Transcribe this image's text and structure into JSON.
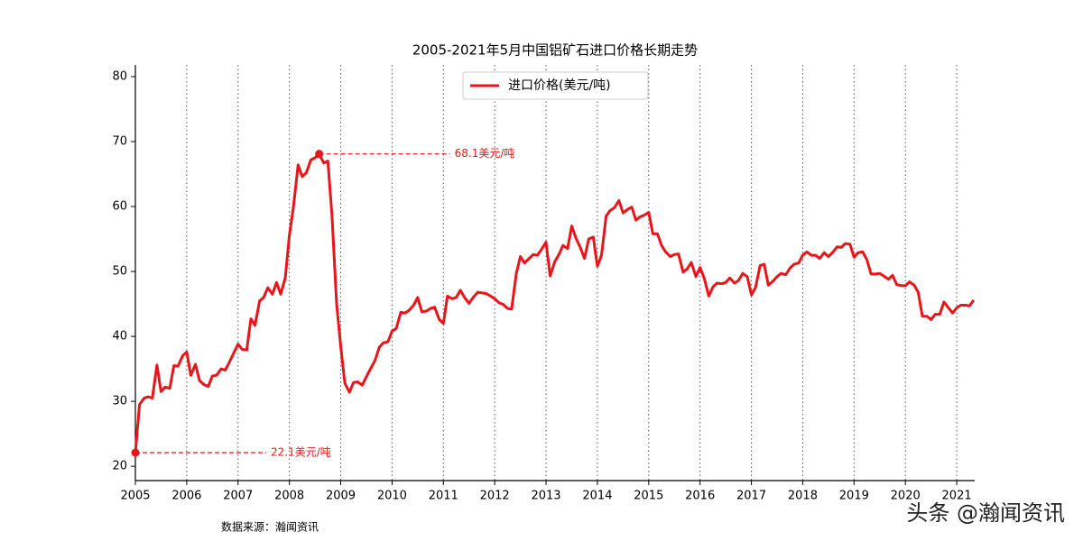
{
  "chart_data": {
    "type": "line",
    "title": "2005-2021年5月中国铝矿石进口价格长期走势",
    "source": "数据来源：瀚闻资讯",
    "watermark": "头条 @瀚闻资讯",
    "legend": "upper center",
    "grid": "x",
    "x": [
      2005.0,
      2005.08,
      2005.17,
      2005.25,
      2005.33,
      2005.42,
      2005.5,
      2005.58,
      2005.67,
      2005.75,
      2005.83,
      2005.92,
      2006.0,
      2006.08,
      2006.17,
      2006.25,
      2006.33,
      2006.42,
      2006.5,
      2006.58,
      2006.67,
      2006.75,
      2006.83,
      2006.92,
      2007.0,
      2007.08,
      2007.17,
      2007.25,
      2007.33,
      2007.42,
      2007.5,
      2007.58,
      2007.67,
      2007.75,
      2007.83,
      2007.92,
      2008.0,
      2008.08,
      2008.17,
      2008.25,
      2008.33,
      2008.42,
      2008.5,
      2008.58,
      2008.67,
      2008.75,
      2008.83,
      2008.92,
      2009.0,
      2009.08,
      2009.17,
      2009.25,
      2009.33,
      2009.42,
      2009.5,
      2009.58,
      2009.67,
      2009.75,
      2009.83,
      2009.92,
      2010.0,
      2010.08,
      2010.17,
      2010.25,
      2010.33,
      2010.42,
      2010.5,
      2010.58,
      2010.67,
      2010.75,
      2010.83,
      2010.92,
      2011.0,
      2011.08,
      2011.17,
      2011.25,
      2011.33,
      2011.42,
      2011.5,
      2011.58,
      2011.67,
      2011.75,
      2011.83,
      2011.92,
      2012.0,
      2012.08,
      2012.17,
      2012.25,
      2012.33,
      2012.42,
      2012.5,
      2012.58,
      2012.67,
      2012.75,
      2012.83,
      2012.92,
      2013.0,
      2013.08,
      2013.17,
      2013.25,
      2013.33,
      2013.42,
      2013.5,
      2013.58,
      2013.67,
      2013.75,
      2013.83,
      2013.92,
      2014.0,
      2014.08,
      2014.17,
      2014.25,
      2014.33,
      2014.42,
      2014.5,
      2014.58,
      2014.67,
      2014.75,
      2014.83,
      2014.92,
      2015.0,
      2015.08,
      2015.17,
      2015.25,
      2015.33,
      2015.42,
      2015.5,
      2015.58,
      2015.67,
      2015.75,
      2015.83,
      2015.92,
      2016.0,
      2016.08,
      2016.17,
      2016.25,
      2016.33,
      2016.42,
      2016.5,
      2016.58,
      2016.67,
      2016.75,
      2016.83,
      2016.92,
      2017.0,
      2017.08,
      2017.17,
      2017.25,
      2017.33,
      2017.42,
      2017.5,
      2017.58,
      2017.67,
      2017.75,
      2017.83,
      2017.92,
      2018.0,
      2018.08,
      2018.17,
      2018.25,
      2018.33,
      2018.42,
      2018.5,
      2018.58,
      2018.67,
      2018.75,
      2018.83,
      2018.92,
      2019.0,
      2019.08,
      2019.17,
      2019.25,
      2019.33,
      2019.42,
      2019.5,
      2019.58,
      2019.67,
      2019.75,
      2019.83,
      2019.92,
      2020.0,
      2020.08,
      2020.17,
      2020.25,
      2020.33,
      2020.42,
      2020.5,
      2020.58,
      2020.67,
      2020.75,
      2020.83,
      2020.92,
      2021.0,
      2021.08,
      2021.17,
      2021.25,
      2021.33
    ],
    "series": [
      {
        "name": "进口价格(美元/吨)",
        "color": "#e8151a",
        "values": [
          22.1,
          29.5,
          30.5,
          30.7,
          30.5,
          35.6,
          31.5,
          32.2,
          32.0,
          35.5,
          35.4,
          37.0,
          37.6,
          34.0,
          35.7,
          33.2,
          32.6,
          32.3,
          33.9,
          34.0,
          35.0,
          34.8,
          36.0,
          37.5,
          38.8,
          38.0,
          37.9,
          42.7,
          41.7,
          45.5,
          46.0,
          47.5,
          46.5,
          48.3,
          46.5,
          49.0,
          55.5,
          60.0,
          66.4,
          64.6,
          65.2,
          67.2,
          67.5,
          68.1,
          66.7,
          67.0,
          58.5,
          45.0,
          38.5,
          32.8,
          31.4,
          32.9,
          33.0,
          32.5,
          33.8,
          35.0,
          36.3,
          38.3,
          39.0,
          39.2,
          40.8,
          41.2,
          43.7,
          43.6,
          44.0,
          44.8,
          46.0,
          43.8,
          43.9,
          44.3,
          44.5,
          42.6,
          42.0,
          46.2,
          45.8,
          46.0,
          47.1,
          45.9,
          45.1,
          46.0,
          46.8,
          46.7,
          46.6,
          46.2,
          45.8,
          45.2,
          44.9,
          44.3,
          44.2,
          49.7,
          52.3,
          51.3,
          52.0,
          52.6,
          52.5,
          53.5,
          54.5,
          49.3,
          51.5,
          52.6,
          54.0,
          53.5,
          57.0,
          55.2,
          53.6,
          52.0,
          55.0,
          55.3,
          50.8,
          52.5,
          58.5,
          59.4,
          59.8,
          60.9,
          59.0,
          59.5,
          59.9,
          57.9,
          58.4,
          58.7,
          59.1,
          55.8,
          55.8,
          54.0,
          53.0,
          52.3,
          52.6,
          52.7,
          49.9,
          50.4,
          51.4,
          49.2,
          50.6,
          49.0,
          46.2,
          47.6,
          48.2,
          48.1,
          48.3,
          49.0,
          48.2,
          48.6,
          49.7,
          49.2,
          46.4,
          47.5,
          50.9,
          51.1,
          47.9,
          48.5,
          49.2,
          49.7,
          49.5,
          50.5,
          51.1,
          51.3,
          52.5,
          53.0,
          52.5,
          52.5,
          52.0,
          52.9,
          52.3,
          52.9,
          53.8,
          53.7,
          54.3,
          54.2,
          52.2,
          52.9,
          53.0,
          51.8,
          49.6,
          49.6,
          49.7,
          49.3,
          48.8,
          49.4,
          48.0,
          47.8,
          47.8,
          48.4,
          47.9,
          46.8,
          43.1,
          43.1,
          42.6,
          43.4,
          43.4,
          45.3,
          44.5,
          43.6,
          44.4,
          44.8,
          44.8,
          44.7,
          45.6
        ]
      }
    ],
    "annotations": [
      {
        "text": "68.1美元/吨",
        "x": 2008.58,
        "y": 68.1
      },
      {
        "text": "22.1美元/吨",
        "x": 2005.0,
        "y": 22.1
      }
    ],
    "xlim": [
      2005,
      2021.35
    ],
    "xticks": [
      2005,
      2006,
      2007,
      2008,
      2009,
      2010,
      2011,
      2012,
      2013,
      2014,
      2015,
      2016,
      2017,
      2018,
      2019,
      2020,
      2021
    ],
    "ylim": [
      17.8,
      81.8
    ],
    "yticks": [
      20,
      30,
      40,
      50,
      60,
      70,
      80
    ]
  }
}
